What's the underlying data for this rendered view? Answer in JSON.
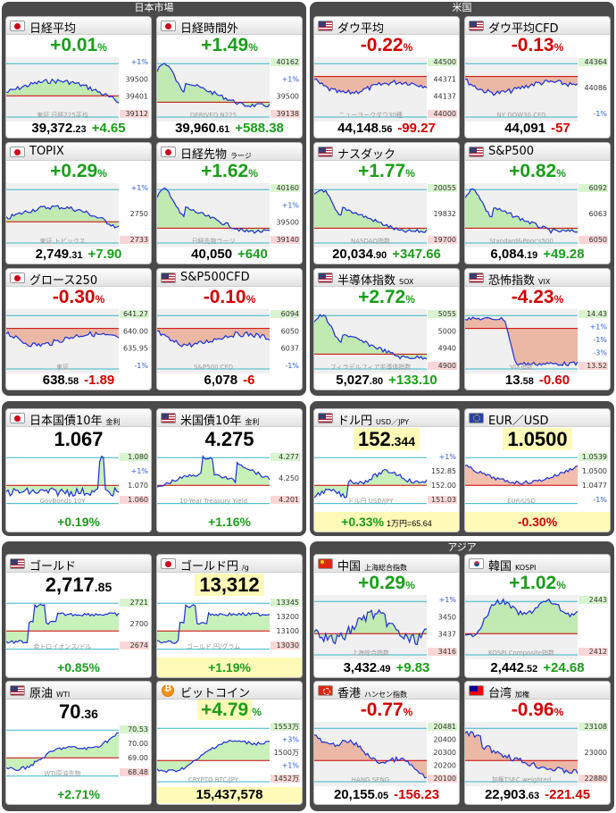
{
  "sections": {
    "jp": "日本市場",
    "us": "米国",
    "asia": "アジア"
  },
  "cards": [
    {
      "id": "nikkei",
      "name": "日経平均",
      "sub": "",
      "flag": "jp",
      "pct": "+0.01",
      "dir": "up",
      "price_main": "39,372",
      "price_dec": ".23",
      "chg": "+4.65",
      "right": [
        "+1%",
        "39500",
        "39401",
        "39112"
      ],
      "wm": "東証 日経225平均",
      "kind": "mixed_up"
    },
    {
      "id": "nikkei_ah",
      "name": "日経時間外",
      "sub": "",
      "flag": "jp",
      "pct": "+1.49",
      "dir": "up",
      "price_main": "39,960",
      "price_dec": ".61",
      "chg": "+588.38",
      "right": [
        "40162",
        "+1%",
        "39500",
        "39138"
      ],
      "wm": "DERIVED N225",
      "kind": "up"
    },
    {
      "id": "dow",
      "name": "ダウ平均",
      "sub": "",
      "flag": "us",
      "pct": "-0.22",
      "dir": "down",
      "price_main": "44,148",
      "price_dec": ".56",
      "chg": "-99.27",
      "right": [
        "44500",
        "44371",
        "44137",
        "44000"
      ],
      "wm": "ニューヨークダウ30種",
      "kind": "down"
    },
    {
      "id": "dowcfd",
      "name": "ダウ平均CFD",
      "sub": "",
      "flag": "us",
      "pct": "-0.13",
      "dir": "down",
      "price_main": "44,091",
      "price_dec": "",
      "chg": "-57",
      "right": [
        "44364",
        "44086",
        "-1%"
      ],
      "wm": "NY DOW30 CFD",
      "kind": "down"
    },
    {
      "id": "topix",
      "name": "TOPIX",
      "sub": "",
      "flag": "jp",
      "pct": "+0.29",
      "dir": "up",
      "price_main": "2,749",
      "price_dec": ".31",
      "chg": "+7.90",
      "right": [
        "+1%",
        "2750",
        "2733"
      ],
      "wm": "東証 トピックス",
      "kind": "mixed_up"
    },
    {
      "id": "nk_fut",
      "name": "日経先物",
      "sub": "ラージ",
      "flag": "jp",
      "pct": "+1.62",
      "dir": "up",
      "price_main": "40,050",
      "price_dec": "",
      "chg": "+640",
      "right": [
        "40160",
        "+1%",
        "39500",
        "39140"
      ],
      "wm": "日経先物ラージ",
      "kind": "up"
    },
    {
      "id": "nasdaq",
      "name": "ナスダック",
      "sub": "",
      "flag": "us",
      "pct": "+1.77",
      "dir": "up",
      "price_main": "20,034",
      "price_dec": ".90",
      "chg": "+347.66",
      "right": [
        "20055",
        "19832",
        "19700"
      ],
      "wm": "NASDAQ指数",
      "kind": "up"
    },
    {
      "id": "sp500",
      "name": "S&P500",
      "sub": "",
      "flag": "us",
      "pct": "+0.82",
      "dir": "up",
      "price_main": "6,084",
      "price_dec": ".19",
      "chg": "+49.28",
      "right": [
        "6092",
        "6063",
        "6050"
      ],
      "wm": "Standard&Poor's500",
      "kind": "up"
    },
    {
      "id": "growth",
      "name": "グロース250",
      "sub": "",
      "flag": "jp",
      "pct": "-0.30",
      "dir": "down",
      "price_main": "638",
      "price_dec": ".58",
      "chg": "-1.89",
      "right": [
        "641.27",
        "640.00",
        "635.95",
        "-1%"
      ],
      "wm": "東証",
      "kind": "down"
    },
    {
      "id": "spcfd",
      "name": "S&P500CFD",
      "sub": "",
      "flag": "us",
      "pct": "-0.10",
      "dir": "down",
      "price_main": "6,078",
      "price_dec": "",
      "chg": "-6",
      "right": [
        "6094",
        "6050",
        "6037",
        "-1%"
      ],
      "wm": "S&P500 CFD",
      "kind": "down"
    },
    {
      "id": "sox",
      "name": "半導体指数",
      "sub": "SOX",
      "flag": "us",
      "pct": "+2.72",
      "dir": "up",
      "price_main": "5,027",
      "price_dec": ".80",
      "chg": "+133.10",
      "right": [
        "5055",
        "5000",
        "4940",
        "4900"
      ],
      "wm": "フィラデルフィア半導体指数",
      "kind": "up"
    },
    {
      "id": "vix",
      "name": "恐怖指数",
      "sub": "VIX",
      "flag": "us",
      "pct": "-4.23",
      "dir": "down",
      "price_main": "13",
      "price_dec": ".58",
      "chg": "-0.60",
      "right": [
        "14.43",
        "+1%",
        "-1%",
        "-3%",
        "13.52"
      ],
      "wm": "VIX指数",
      "kind": "vix"
    },
    {
      "id": "jgb",
      "name": "日本国債10年",
      "sub": "金利",
      "flag": "jp",
      "big": "1.067",
      "big_dec": "",
      "chgpct": "+0.19%",
      "dir": "up",
      "right": [
        "1.080",
        "+1%",
        "1.070",
        "1.060"
      ],
      "wm": "GovBonds 10Y",
      "kind": "jgb",
      "hl": false
    },
    {
      "id": "ust",
      "name": "米国債10年",
      "sub": "金利",
      "flag": "us",
      "big": "4.275",
      "big_dec": "",
      "chgpct": "+1.16%",
      "dir": "up",
      "right": [
        "4.277",
        "4.250",
        "4.201"
      ],
      "wm": "10-Year Treasury Yield",
      "kind": "ust",
      "hl": false
    },
    {
      "id": "usdjpy",
      "name": "ドル円",
      "sub": "USD／JPY",
      "flag": "us",
      "big": "152",
      "big_dec": ".344",
      "chgpct": "+0.33%",
      "dir": "up",
      "note": "1万円=65.64",
      "right": [
        "+1%",
        "152.85",
        "152.00",
        "151.03"
      ],
      "wm": "ドル円 USD/JPY",
      "kind": "fx",
      "hl": true
    },
    {
      "id": "eurusd",
      "name": "EUR／USD",
      "sub": "",
      "flag": "eu",
      "big": "1.0500",
      "big_dec": "",
      "chgpct": "-0.30%",
      "dir": "down",
      "right": [
        "1.0539",
        "1.0500",
        "1.0477",
        "-1%"
      ],
      "wm": "EUR/USD",
      "kind": "eur",
      "hl": true
    },
    {
      "id": "gold",
      "name": "ゴールド",
      "sub": "",
      "flag": "us",
      "big": "2,717",
      "big_dec": ".85",
      "chgpct": "+0.85%",
      "dir": "up",
      "right": [
        "2721",
        "2700",
        "2674"
      ],
      "wm": "金トロイオンス/ドル",
      "kind": "gold",
      "hl": false
    },
    {
      "id": "goldjpy",
      "name": "ゴールド円",
      "sub": "/g",
      "flag": "jp",
      "big": "13,312",
      "big_dec": "",
      "chgpct": "+1.19%",
      "dir": "up",
      "right": [
        "13345",
        "13200",
        "13100",
        "13030"
      ],
      "wm": "ゴールド 円/グラム",
      "kind": "gold",
      "hl": true
    },
    {
      "id": "china",
      "name": "中国",
      "sub": "上海総合指数",
      "flag": "cn",
      "pct": "+0.29",
      "dir": "up",
      "price_main": "3,432",
      "price_dec": ".49",
      "chg": "+9.83",
      "right": [
        "+1%",
        "3450",
        "3437",
        "3416"
      ],
      "wm": "上海総合指数",
      "kind": "china"
    },
    {
      "id": "korea",
      "name": "韓国",
      "sub": "KOSPI",
      "flag": "kr",
      "pct": "+1.02",
      "dir": "up",
      "price_main": "2,442",
      "price_dec": ".52",
      "chg": "+24.68",
      "right": [
        "2443",
        "2412"
      ],
      "wm": "KOSPI Composite指数",
      "kind": "korea"
    },
    {
      "id": "wti",
      "name": "原油",
      "sub": "WTI",
      "flag": "us",
      "big": "70",
      "big_dec": ".36",
      "chgpct": "+2.71%",
      "dir": "up",
      "right": [
        "70.53",
        "70.00",
        "69.00",
        "68.48"
      ],
      "wm": "WTI原油先物",
      "kind": "oil",
      "hl": false
    },
    {
      "id": "btc",
      "name": "ビットコイン",
      "sub": "",
      "flag": "btc",
      "pct": "+4.79",
      "pct_unit": "%",
      "dir": "up",
      "price_main": "15,437,578",
      "price_dec": "",
      "chg": "",
      "right": [
        "1553万",
        "+3%",
        "1500万",
        "+1%",
        "1452万"
      ],
      "wm": "CRYPTO BTC/JPY",
      "kind": "btc",
      "hl": true
    },
    {
      "id": "hk",
      "name": "香港",
      "sub": "ハンセン指数",
      "flag": "hk",
      "pct": "-0.77",
      "dir": "down",
      "price_main": "20,155",
      "price_dec": ".05",
      "chg": "-156.23",
      "right": [
        "20481",
        "20400",
        "20300",
        "20200",
        "20100"
      ],
      "wm": "HANG SENG",
      "kind": "hk"
    },
    {
      "id": "tw",
      "name": "台湾",
      "sub": "加権",
      "flag": "tw",
      "pct": "-0.96",
      "dir": "down",
      "price_main": "22,903",
      "price_dec": ".63",
      "chg": "-221.45",
      "right": [
        "23108",
        "23000",
        "22880"
      ],
      "wm": "加権TSEC weighted",
      "kind": "tw"
    }
  ]
}
